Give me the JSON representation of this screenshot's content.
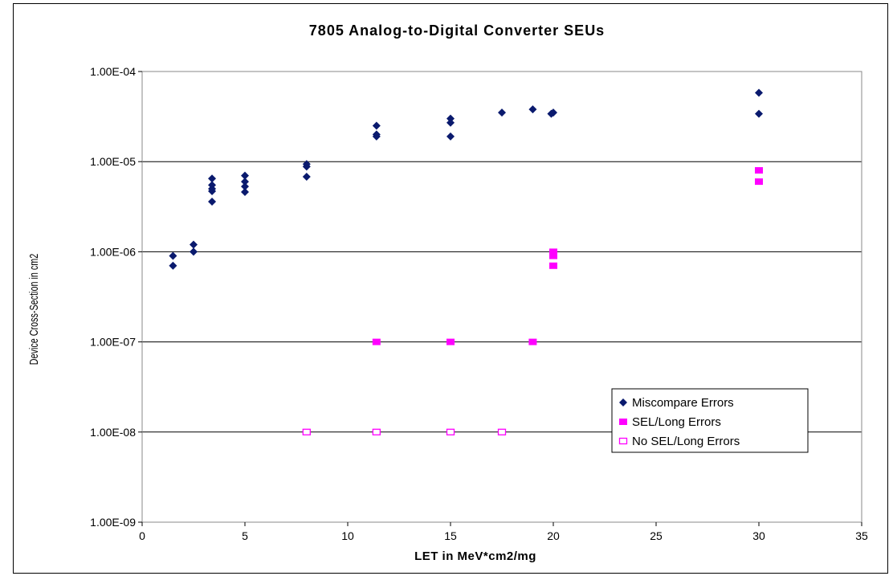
{
  "chart_data": {
    "type": "scatter",
    "title": "7805 Analog-to-Digital Converter SEUs",
    "xlabel": "LET in MeV*cm2/mg",
    "ylabel": "Device Cross-Section in cm2",
    "xlim": [
      0,
      35
    ],
    "ylim": [
      1e-09,
      0.0001
    ],
    "y_scale": "log",
    "x_ticks": [
      "0",
      "5",
      "10",
      "15",
      "20",
      "25",
      "30",
      "35"
    ],
    "y_ticks": [
      "1.00E-09",
      "1.00E-08",
      "1.00E-07",
      "1.00E-06",
      "1.00E-05",
      "1.00E-04"
    ],
    "grid": "horizontal",
    "legend_position": "lower-right",
    "series": [
      {
        "name": "Miscompare Errors",
        "marker": "diamond",
        "color": "#0a1a6e",
        "points": [
          [
            1.5,
            9e-07
          ],
          [
            1.5,
            7e-07
          ],
          [
            2.5,
            1.2e-06
          ],
          [
            2.5,
            1e-06
          ],
          [
            3.4,
            6.5e-06
          ],
          [
            3.4,
            5.5e-06
          ],
          [
            3.4,
            5e-06
          ],
          [
            3.4,
            4.7e-06
          ],
          [
            3.4,
            3.6e-06
          ],
          [
            5.0,
            7e-06
          ],
          [
            5.0,
            6e-06
          ],
          [
            5.0,
            5.3e-06
          ],
          [
            5.0,
            4.6e-06
          ],
          [
            8.0,
            9.4e-06
          ],
          [
            8.0,
            8.8e-06
          ],
          [
            8.0,
            6.8e-06
          ],
          [
            11.4,
            2.5e-05
          ],
          [
            11.4,
            2e-05
          ],
          [
            11.4,
            1.9e-05
          ],
          [
            15.0,
            3e-05
          ],
          [
            15.0,
            2.7e-05
          ],
          [
            15.0,
            1.9e-05
          ],
          [
            17.5,
            3.5e-05
          ],
          [
            19.0,
            3.8e-05
          ],
          [
            20.0,
            3.5e-05
          ],
          [
            19.9,
            3.4e-05
          ],
          [
            30.0,
            5.8e-05
          ],
          [
            30.0,
            3.4e-05
          ]
        ]
      },
      {
        "name": "SEL/Long Errors",
        "marker": "square-filled",
        "color": "#ff00ff",
        "points": [
          [
            11.4,
            1e-07
          ],
          [
            15.0,
            1e-07
          ],
          [
            19.0,
            1e-07
          ],
          [
            20.0,
            1e-06
          ],
          [
            20.0,
            9e-07
          ],
          [
            20.0,
            7e-07
          ],
          [
            30.0,
            8e-06
          ],
          [
            30.0,
            6e-06
          ]
        ]
      },
      {
        "name": "No SEL/Long Errors",
        "marker": "square-open",
        "color": "#ff00ff",
        "points": [
          [
            8.0,
            1e-08
          ],
          [
            11.4,
            1e-08
          ],
          [
            15.0,
            1e-08
          ],
          [
            17.5,
            1e-08
          ]
        ]
      }
    ]
  }
}
